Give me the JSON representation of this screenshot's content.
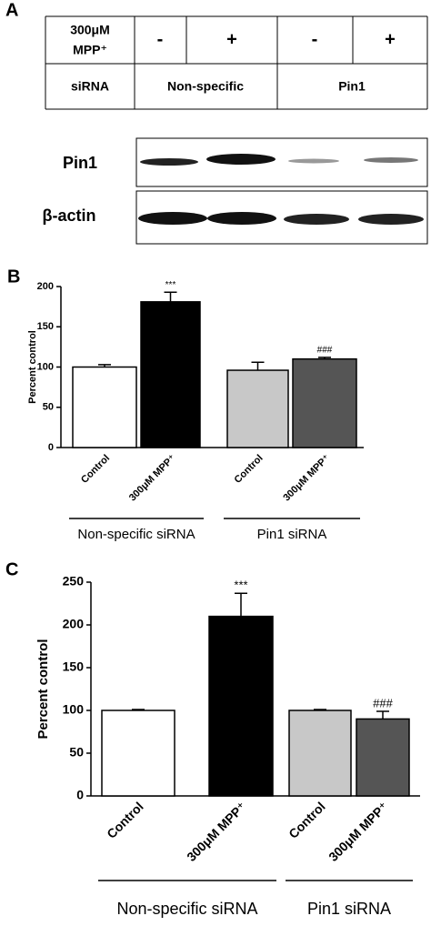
{
  "blot": {
    "panel_label": "A",
    "treatment_label": [
      "300μM",
      "MPP⁺"
    ],
    "treatment": [
      "-",
      "+",
      "-",
      "+"
    ],
    "sirna_label": "siRNA",
    "sirna": [
      "Non-specific",
      "Pin1"
    ],
    "rows": [
      "Pin1",
      "β-actin"
    ]
  },
  "chart_data": [
    {
      "type": "bar",
      "panel_label": "B",
      "y_label": "Percent control",
      "categories": [
        "Control",
        "300μM MPP⁺",
        "Control",
        "300μM MPP⁺"
      ],
      "values": [
        100,
        181,
        96,
        110
      ],
      "errors": [
        3,
        12,
        10,
        2
      ],
      "colors": [
        "#ffffff",
        "#000000",
        "#c8c8c8",
        "#555555"
      ],
      "annotations": [
        null,
        "***",
        null,
        "###"
      ],
      "groups": [
        {
          "label": "Non-specific siRNA",
          "size": 2
        },
        {
          "label": "Pin1 siRNA",
          "size": 2
        }
      ],
      "ylim": [
        0,
        200
      ],
      "yticks": [
        0,
        50,
        100,
        150,
        200
      ]
    },
    {
      "type": "bar",
      "panel_label": "C",
      "y_label": "Percent control",
      "categories": [
        "Control",
        "300μM MPP⁺",
        "Control",
        "300μM MPP⁺"
      ],
      "values": [
        100,
        210,
        100,
        90
      ],
      "errors": [
        1,
        27,
        1,
        9
      ],
      "colors": [
        "#ffffff",
        "#000000",
        "#c8c8c8",
        "#555555"
      ],
      "annotations": [
        null,
        "***",
        null,
        "###"
      ],
      "groups": [
        {
          "label": "Non-specific siRNA",
          "size": 2
        },
        {
          "label": "Pin1 siRNA",
          "size": 2
        }
      ],
      "ylim": [
        0,
        250
      ],
      "yticks": [
        0,
        50,
        100,
        150,
        200,
        250
      ]
    }
  ]
}
